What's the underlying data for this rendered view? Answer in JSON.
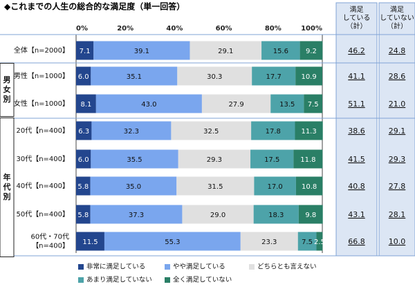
{
  "chart_data": {
    "type": "bar",
    "title": "◆これまでの人生の総合的な満足度（単一回答）",
    "x_ticks": [
      "0%",
      "20%",
      "40%",
      "60%",
      "80%",
      "100%"
    ],
    "xlim": [
      0,
      100
    ],
    "stacked": true,
    "orientation": "horizontal",
    "categories": [
      "全体【n=2000】",
      "男性【n=1000】",
      "女性【n=1000】",
      "20代【n=400】",
      "30代【n=400】",
      "40代【n=400】",
      "50代【n=400】",
      "60代・70代【n=400】"
    ],
    "category_lines": [
      [
        "全体【n=2000】"
      ],
      [
        "男性【n=1000】"
      ],
      [
        "女性【n=1000】"
      ],
      [
        "20代【n=400】"
      ],
      [
        "30代【n=400】"
      ],
      [
        "40代【n=400】"
      ],
      [
        "50代【n=400】"
      ],
      [
        "60代・70代",
        "【n=400】"
      ]
    ],
    "groups": [
      {
        "label": [
          "男",
          "女",
          "別"
        ],
        "rows": [
          1,
          2
        ]
      },
      {
        "label": [
          "年",
          "代",
          "別"
        ],
        "rows": [
          3,
          4,
          5,
          6,
          7
        ]
      }
    ],
    "series": [
      {
        "name": "非常に満足している",
        "color": "#23468e",
        "text_color": "#ffffff",
        "values": [
          7.1,
          6.0,
          8.1,
          6.3,
          6.0,
          5.8,
          5.8,
          11.5
        ]
      },
      {
        "name": "やや満足している",
        "color": "#7aa6ee",
        "text_color": "#111111",
        "values": [
          39.1,
          35.1,
          43.0,
          32.3,
          35.5,
          35.0,
          37.3,
          55.3
        ]
      },
      {
        "name": "どちらとも言えない",
        "color": "#e0e0e0",
        "text_color": "#111111",
        "values": [
          29.1,
          30.3,
          27.9,
          32.5,
          29.3,
          31.5,
          29.0,
          23.3
        ]
      },
      {
        "name": "あまり満足していない",
        "color": "#4da3a9",
        "text_color": "#111111",
        "values": [
          15.6,
          17.7,
          13.5,
          17.8,
          17.5,
          17.0,
          18.3,
          7.5
        ]
      },
      {
        "name": "全く満足していない",
        "color": "#2a7f66",
        "text_color": "#ffffff",
        "values": [
          9.2,
          10.9,
          7.5,
          11.3,
          11.8,
          10.8,
          9.8,
          2.5
        ]
      }
    ],
    "summary_columns": [
      {
        "header": [
          "満足",
          "している",
          "（計）"
        ],
        "values": [
          "46.2",
          "41.1",
          "51.1",
          "38.6",
          "41.5",
          "40.8",
          "43.1",
          "66.8"
        ]
      },
      {
        "header": [
          "満足",
          "していない",
          "（計）"
        ],
        "values": [
          "24.8",
          "28.6",
          "21.0",
          "29.1",
          "29.3",
          "27.8",
          "28.1",
          "10.0"
        ]
      }
    ],
    "legend_position": "bottom"
  }
}
